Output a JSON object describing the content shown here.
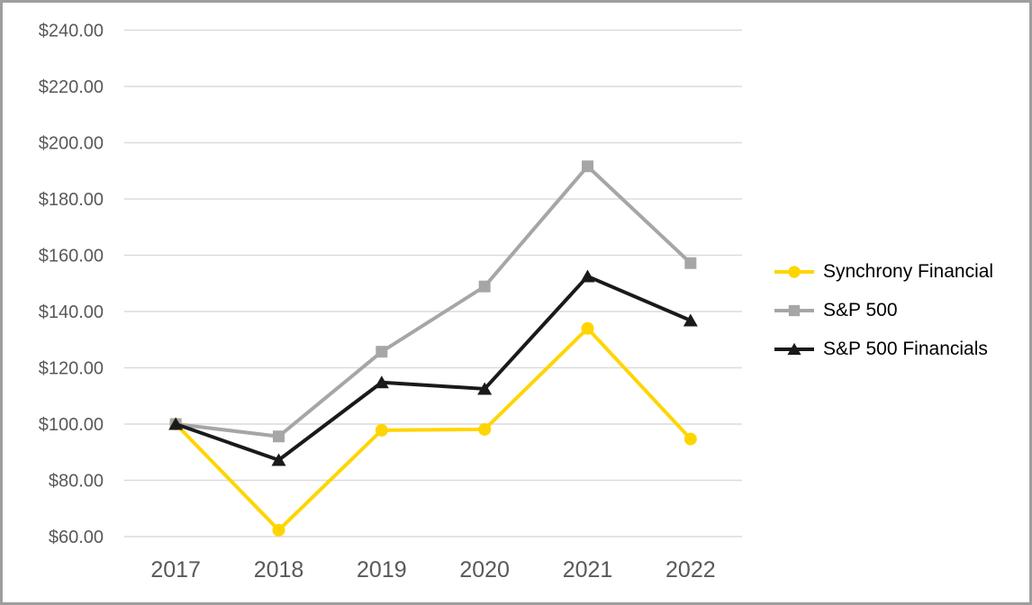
{
  "chart_data": {
    "type": "line",
    "title": "",
    "xlabel": "",
    "ylabel": "",
    "x": [
      "2017",
      "2018",
      "2019",
      "2020",
      "2021",
      "2022"
    ],
    "series": [
      {
        "name": "Synchrony Financial",
        "marker": "circle",
        "color": "#FFD500",
        "values": [
          100,
          62.3,
          97.8,
          98.1,
          134.0,
          94.7
        ]
      },
      {
        "name": "S&P 500",
        "marker": "square",
        "color": "#A6A6A6",
        "values": [
          100,
          95.6,
          125.7,
          148.9,
          191.6,
          157.2
        ]
      },
      {
        "name": "S&P 500 Financials",
        "marker": "triangle",
        "color": "#1A1A1A",
        "values": [
          100,
          87.2,
          114.8,
          112.5,
          152.5,
          136.8
        ]
      }
    ],
    "ylim": [
      60,
      240
    ],
    "yticks": [
      240,
      220,
      200,
      180,
      160,
      140,
      120,
      100,
      80,
      60
    ],
    "ytick_labels": [
      "$240.00",
      "$220.00",
      "$200.00",
      "$180.00",
      "$160.00",
      "$140.00",
      "$120.00",
      "$100.00",
      "$80.00",
      "$60.00"
    ],
    "grid": true,
    "legend_position": "right"
  },
  "styles": {
    "grid_color": "#DBDBDB",
    "axis_label_color": "#595959",
    "legend_text_color": "#000000",
    "frame_border_color": "#9E9E9E",
    "background_color": "#FFFFFF"
  }
}
